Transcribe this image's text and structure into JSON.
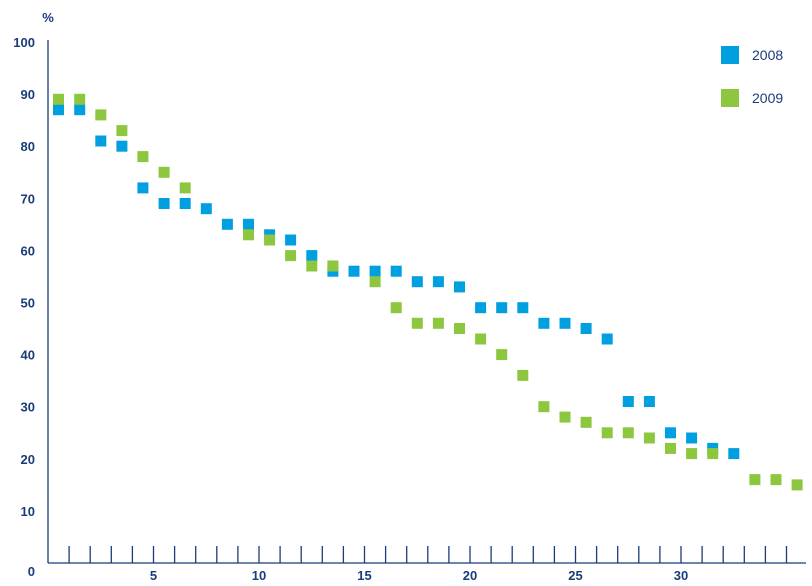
{
  "chart_data": {
    "type": "scatter",
    "title": "",
    "xlabel": "",
    "ylabel": "%",
    "xlim": [
      0,
      35
    ],
    "ylim": [
      0,
      100
    ],
    "xticks": [
      5,
      10,
      15,
      20,
      25,
      30
    ],
    "yticks": [
      0,
      10,
      20,
      30,
      40,
      50,
      60,
      70,
      80,
      90,
      100
    ],
    "grid": false,
    "legend_position": "top-right",
    "series": [
      {
        "name": "2008",
        "color": "#00a0e0",
        "x": [
          0.5,
          1.5,
          2.5,
          3.5,
          4.5,
          5.5,
          6.5,
          7.5,
          8.5,
          9.5,
          10.5,
          11.5,
          12.5,
          13.5,
          14.5,
          15.5,
          16.5,
          17.5,
          18.5,
          19.5,
          20.5,
          21.5,
          22.5,
          23.5,
          24.5,
          25.5,
          26.5,
          27.5,
          28.5,
          29.5,
          30.5,
          31.5,
          32.5
        ],
        "y": [
          87,
          87,
          81,
          80,
          72,
          69,
          69,
          68,
          65,
          65,
          63,
          62,
          59,
          56,
          56,
          56,
          56,
          54,
          54,
          53,
          49,
          49,
          49,
          46,
          46,
          45,
          43,
          31,
          31,
          25,
          24,
          22,
          21
        ]
      },
      {
        "name": "2009",
        "color": "#8dc63f",
        "x": [
          0.5,
          1.5,
          2.5,
          3.5,
          4.5,
          5.5,
          6.5,
          9.5,
          10.5,
          11.5,
          12.5,
          13.5,
          15.5,
          16.5,
          17.5,
          18.5,
          19.5,
          20.5,
          21.5,
          22.5,
          23.5,
          24.5,
          25.5,
          26.5,
          27.5,
          28.5,
          29.5,
          30.5,
          31.5,
          33.5,
          34.5,
          35.5
        ],
        "y": [
          89,
          89,
          86,
          83,
          78,
          75,
          72,
          63,
          62,
          59,
          57,
          57,
          54,
          49,
          46,
          46,
          45,
          43,
          40,
          36,
          30,
          28,
          27,
          25,
          25,
          24,
          22,
          21,
          21,
          16,
          16,
          15
        ]
      }
    ]
  }
}
